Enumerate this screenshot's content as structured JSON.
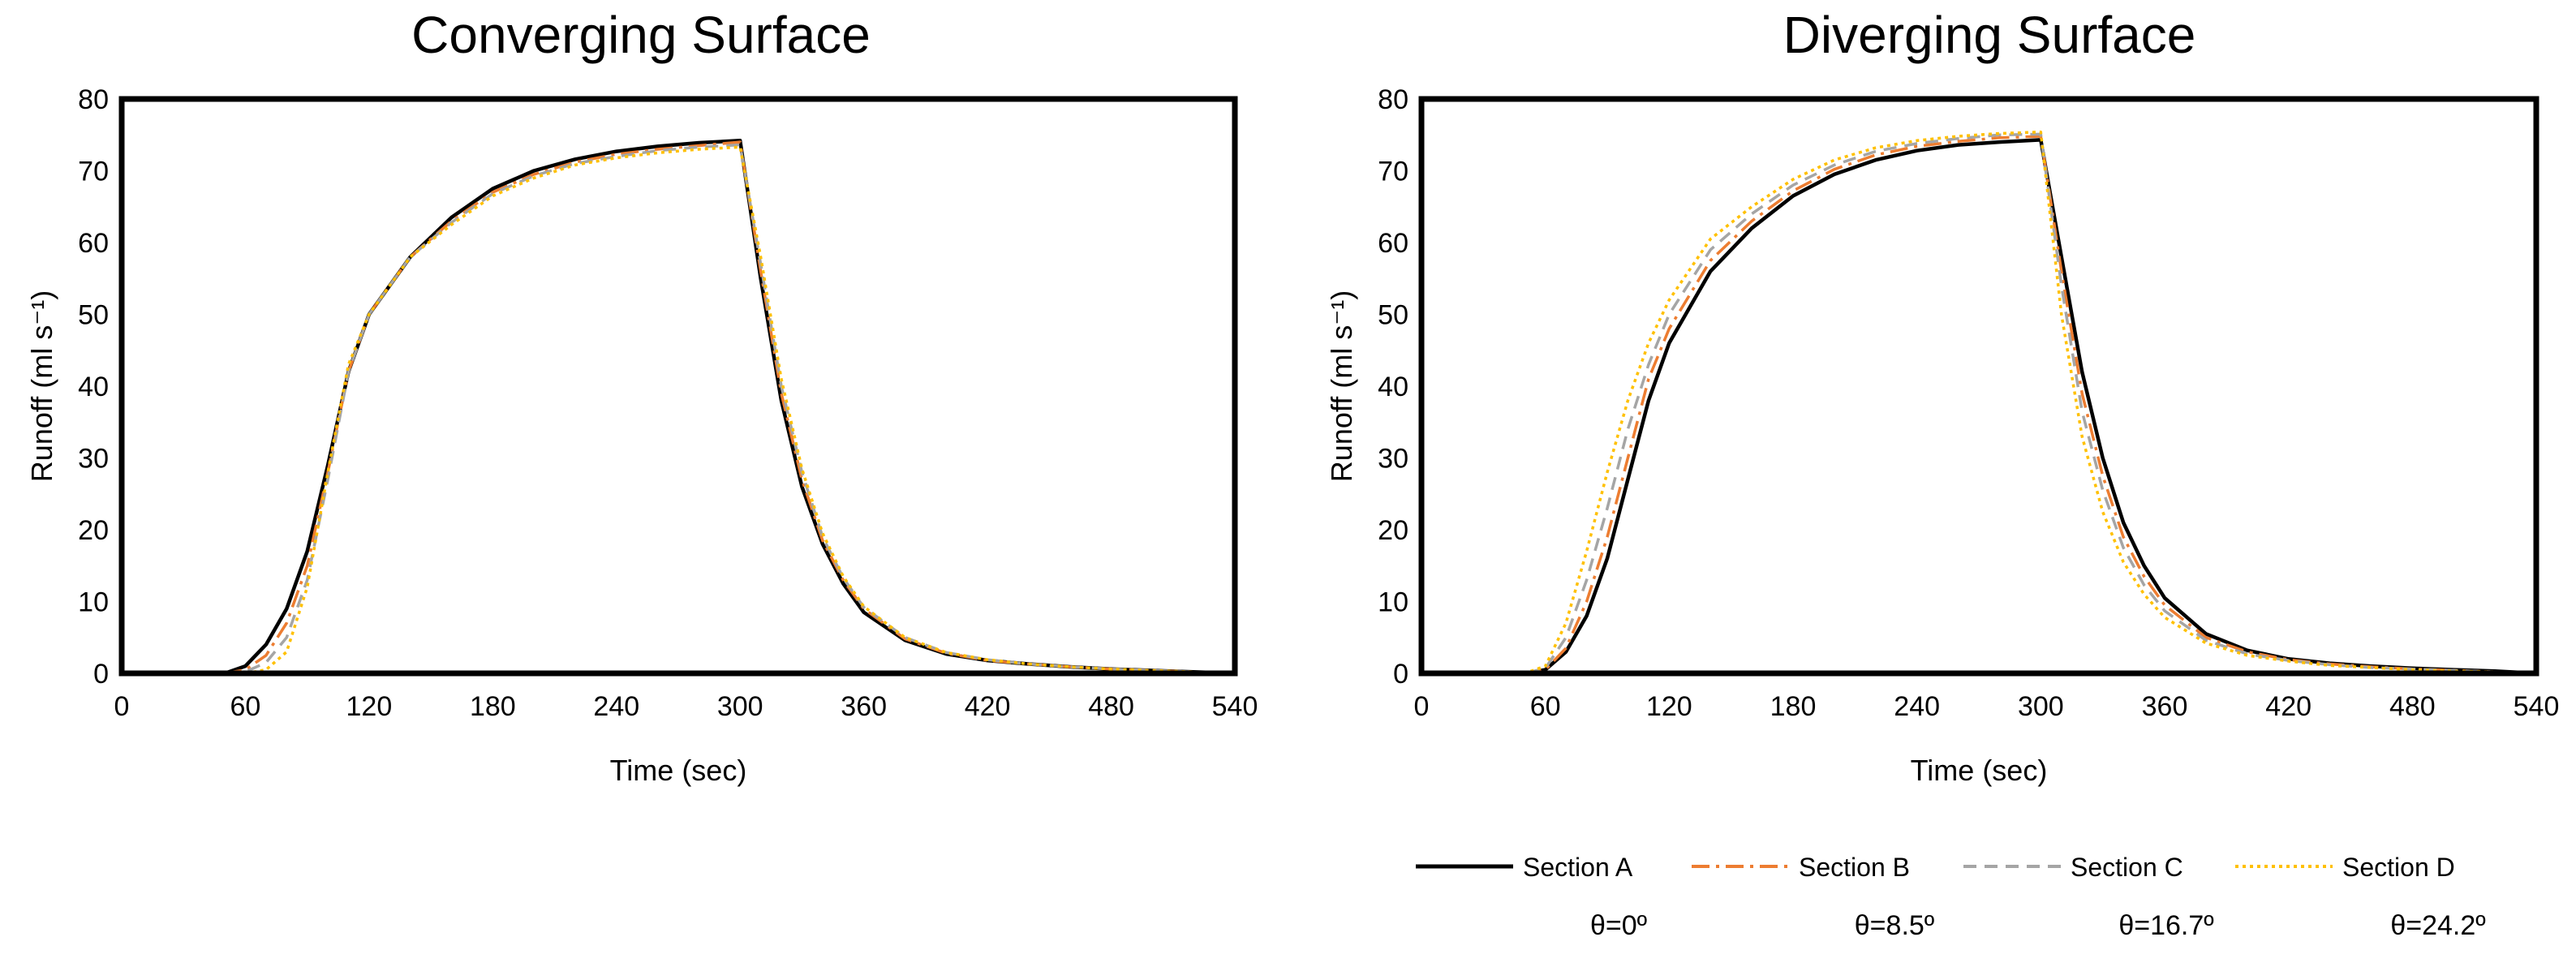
{
  "chart_data": [
    {
      "type": "line",
      "title": "Converging Surface",
      "xlabel": "Time (sec)",
      "ylabel": "Runoff (ml s⁻¹)",
      "xlim": [
        0,
        540
      ],
      "ylim": [
        0,
        80
      ],
      "xticks": [
        0,
        60,
        120,
        180,
        240,
        300,
        360,
        420,
        480,
        540
      ],
      "yticks": [
        0,
        10,
        20,
        30,
        40,
        50,
        60,
        70,
        80
      ],
      "grid": false,
      "series": [
        {
          "name": "Section A",
          "x": [
            0,
            50,
            60,
            70,
            80,
            90,
            100,
            110,
            120,
            140,
            160,
            180,
            200,
            220,
            240,
            260,
            280,
            300,
            310,
            320,
            330,
            340,
            350,
            360,
            380,
            400,
            420,
            440,
            460,
            480,
            500,
            520,
            540
          ],
          "y": [
            0,
            0,
            1,
            4,
            9,
            17,
            29,
            42,
            50,
            58,
            63.5,
            67.5,
            70,
            71.6,
            72.7,
            73.4,
            73.9,
            74.2,
            55,
            38,
            26,
            18,
            12.5,
            8.5,
            4.6,
            2.7,
            1.8,
            1.3,
            0.9,
            0.6,
            0.4,
            0.2,
            0
          ]
        },
        {
          "name": "Section B",
          "x": [
            0,
            50,
            60,
            70,
            80,
            90,
            100,
            110,
            120,
            140,
            160,
            180,
            200,
            220,
            240,
            260,
            280,
            300,
            310,
            320,
            330,
            340,
            350,
            360,
            380,
            400,
            420,
            440,
            460,
            480,
            500,
            520,
            540
          ],
          "y": [
            0,
            0,
            0.5,
            2.5,
            7,
            15,
            28,
            42,
            50,
            58,
            63,
            67,
            69.5,
            71.2,
            72.3,
            73,
            73.5,
            74,
            56,
            39,
            27,
            18.5,
            13,
            9,
            4.8,
            2.8,
            1.8,
            1.3,
            0.9,
            0.6,
            0.4,
            0.2,
            0
          ]
        },
        {
          "name": "Section C",
          "x": [
            0,
            50,
            60,
            70,
            80,
            90,
            100,
            110,
            120,
            140,
            160,
            180,
            200,
            220,
            240,
            260,
            280,
            300,
            310,
            320,
            330,
            340,
            350,
            360,
            380,
            400,
            420,
            440,
            460,
            480,
            500,
            520,
            540
          ],
          "y": [
            0,
            0,
            0.2,
            1.5,
            5,
            13,
            27,
            42,
            50,
            58,
            62.8,
            66.8,
            69.3,
            71,
            72,
            72.8,
            73.3,
            73.6,
            57,
            40,
            28,
            19,
            13.3,
            9.2,
            5,
            2.9,
            1.9,
            1.3,
            0.9,
            0.6,
            0.4,
            0.2,
            0
          ]
        },
        {
          "name": "Section D",
          "x": [
            0,
            50,
            60,
            70,
            80,
            90,
            100,
            110,
            120,
            140,
            160,
            180,
            200,
            220,
            240,
            260,
            280,
            300,
            310,
            320,
            330,
            340,
            350,
            360,
            380,
            400,
            420,
            440,
            460,
            480,
            500,
            520,
            540
          ],
          "y": [
            0,
            0,
            0,
            0.5,
            3,
            12,
            28,
            43,
            50,
            58,
            62.5,
            66.5,
            69,
            70.8,
            71.8,
            72.5,
            73,
            73.3,
            58,
            41,
            28.5,
            19.5,
            13.5,
            9.3,
            5,
            2.9,
            1.9,
            1.3,
            0.9,
            0.6,
            0.4,
            0.2,
            0
          ]
        }
      ]
    },
    {
      "type": "line",
      "title": "Diverging Surface",
      "xlabel": "Time (sec)",
      "ylabel": "Runoff (ml s⁻¹)",
      "xlim": [
        0,
        540
      ],
      "ylim": [
        0,
        80
      ],
      "xticks": [
        0,
        60,
        120,
        180,
        240,
        300,
        360,
        420,
        480,
        540
      ],
      "yticks": [
        0,
        10,
        20,
        30,
        40,
        50,
        60,
        70,
        80
      ],
      "grid": false,
      "series": [
        {
          "name": "Section A",
          "x": [
            0,
            50,
            60,
            70,
            80,
            90,
            100,
            110,
            120,
            140,
            160,
            180,
            200,
            220,
            240,
            260,
            280,
            300,
            310,
            320,
            330,
            340,
            350,
            360,
            380,
            400,
            420,
            440,
            460,
            480,
            500,
            520,
            540
          ],
          "y": [
            0,
            0,
            0.5,
            3,
            8,
            16,
            27,
            38,
            46,
            56,
            62,
            66.5,
            69.5,
            71.5,
            72.8,
            73.6,
            74,
            74.3,
            58,
            42,
            30,
            21,
            15,
            10.5,
            5.5,
            3.2,
            2,
            1.4,
            1,
            0.7,
            0.5,
            0.3,
            0
          ]
        },
        {
          "name": "Section B",
          "x": [
            0,
            50,
            60,
            70,
            80,
            90,
            100,
            110,
            120,
            140,
            160,
            180,
            200,
            220,
            240,
            260,
            280,
            300,
            310,
            320,
            330,
            340,
            350,
            360,
            380,
            400,
            420,
            440,
            460,
            480,
            500,
            520,
            540
          ],
          "y": [
            0,
            0,
            0.5,
            3.5,
            10,
            19,
            30,
            41,
            48,
            57.5,
            63,
            67.2,
            70.2,
            72.2,
            73.4,
            74.1,
            74.6,
            74.8,
            56,
            39,
            27.5,
            19,
            13.5,
            9.5,
            5,
            3,
            1.9,
            1.3,
            0.9,
            0.6,
            0.4,
            0.2,
            0
          ]
        },
        {
          "name": "Section C",
          "x": [
            0,
            50,
            60,
            70,
            80,
            90,
            100,
            110,
            120,
            140,
            160,
            180,
            200,
            220,
            240,
            260,
            280,
            300,
            310,
            320,
            330,
            340,
            350,
            360,
            380,
            400,
            420,
            440,
            460,
            480,
            500,
            520,
            540
          ],
          "y": [
            0,
            0,
            0.7,
            5,
            13,
            23,
            34,
            43,
            50,
            59,
            64,
            68,
            70.8,
            72.7,
            73.8,
            74.5,
            75,
            75.1,
            54,
            36.5,
            25.5,
            17.5,
            12.3,
            8.7,
            4.6,
            2.7,
            1.8,
            1.2,
            0.8,
            0.6,
            0.4,
            0.2,
            0
          ]
        },
        {
          "name": "Section D",
          "x": [
            0,
            50,
            60,
            70,
            80,
            90,
            100,
            110,
            120,
            140,
            160,
            180,
            200,
            220,
            240,
            260,
            280,
            300,
            310,
            320,
            330,
            340,
            350,
            360,
            380,
            400,
            420,
            440,
            460,
            480,
            500,
            520,
            540
          ],
          "y": [
            0,
            0,
            1,
            7,
            17,
            28,
            38,
            46,
            52,
            60.5,
            65,
            68.8,
            71.5,
            73.2,
            74.2,
            74.8,
            75.2,
            75.4,
            50,
            33,
            22.5,
            15.5,
            11,
            7.8,
            4.2,
            2.5,
            1.7,
            1.1,
            0.8,
            0.5,
            0.3,
            0.2,
            0
          ]
        }
      ]
    }
  ],
  "legend": {
    "placement": "bottom-right",
    "items": [
      {
        "label": "Section A",
        "theta": "θ=0º",
        "color": "#000000",
        "dash": "solid"
      },
      {
        "label": "Section B",
        "theta": "θ=8.5º",
        "color": "#ED7D31",
        "dash": "dash-dot"
      },
      {
        "label": "Section C",
        "theta": "θ=16.7º",
        "color": "#A5A5A5",
        "dash": "dashed"
      },
      {
        "label": "Section D",
        "theta": "θ=24.2º",
        "color": "#FFC000",
        "dash": "dotted"
      }
    ]
  }
}
